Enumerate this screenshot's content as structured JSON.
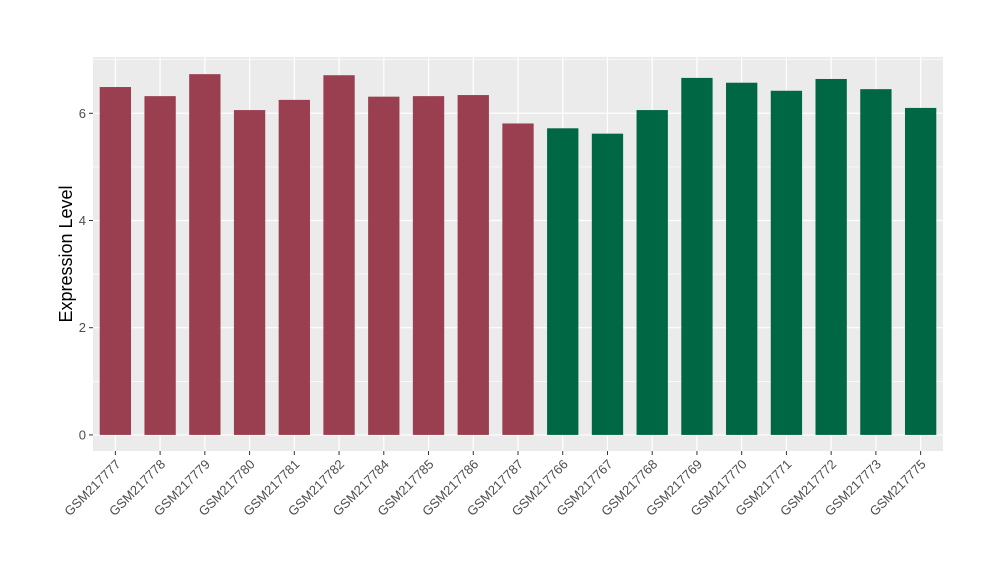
{
  "chart_data": {
    "type": "bar",
    "title": "",
    "xlabel": "",
    "ylabel": "Expression Level",
    "ylim": [
      -0.3,
      7.05
    ],
    "y_ticks": [
      0,
      2,
      4,
      6
    ],
    "grid": true,
    "legend": "none",
    "categories": [
      "GSM217777",
      "GSM217778",
      "GSM217779",
      "GSM217780",
      "GSM217781",
      "GSM217782",
      "GSM217784",
      "GSM217785",
      "GSM217786",
      "GSM217787",
      "GSM217766",
      "GSM217767",
      "GSM217768",
      "GSM217769",
      "GSM217770",
      "GSM217771",
      "GSM217772",
      "GSM217773",
      "GSM217775"
    ],
    "values": [
      6.49,
      6.32,
      6.73,
      6.06,
      6.25,
      6.71,
      6.31,
      6.32,
      6.34,
      5.81,
      5.72,
      5.62,
      6.06,
      6.66,
      6.57,
      6.42,
      6.64,
      6.45,
      6.1
    ],
    "group_colors": [
      "#9a3f4f",
      "#9a3f4f",
      "#9a3f4f",
      "#9a3f4f",
      "#9a3f4f",
      "#9a3f4f",
      "#9a3f4f",
      "#9a3f4f",
      "#9a3f4f",
      "#9a3f4f",
      "#006744",
      "#006744",
      "#006744",
      "#006744",
      "#006744",
      "#006744",
      "#006744",
      "#006744",
      "#006744"
    ],
    "panel_color": "#ebebeb",
    "grid_color": "#ffffff"
  }
}
